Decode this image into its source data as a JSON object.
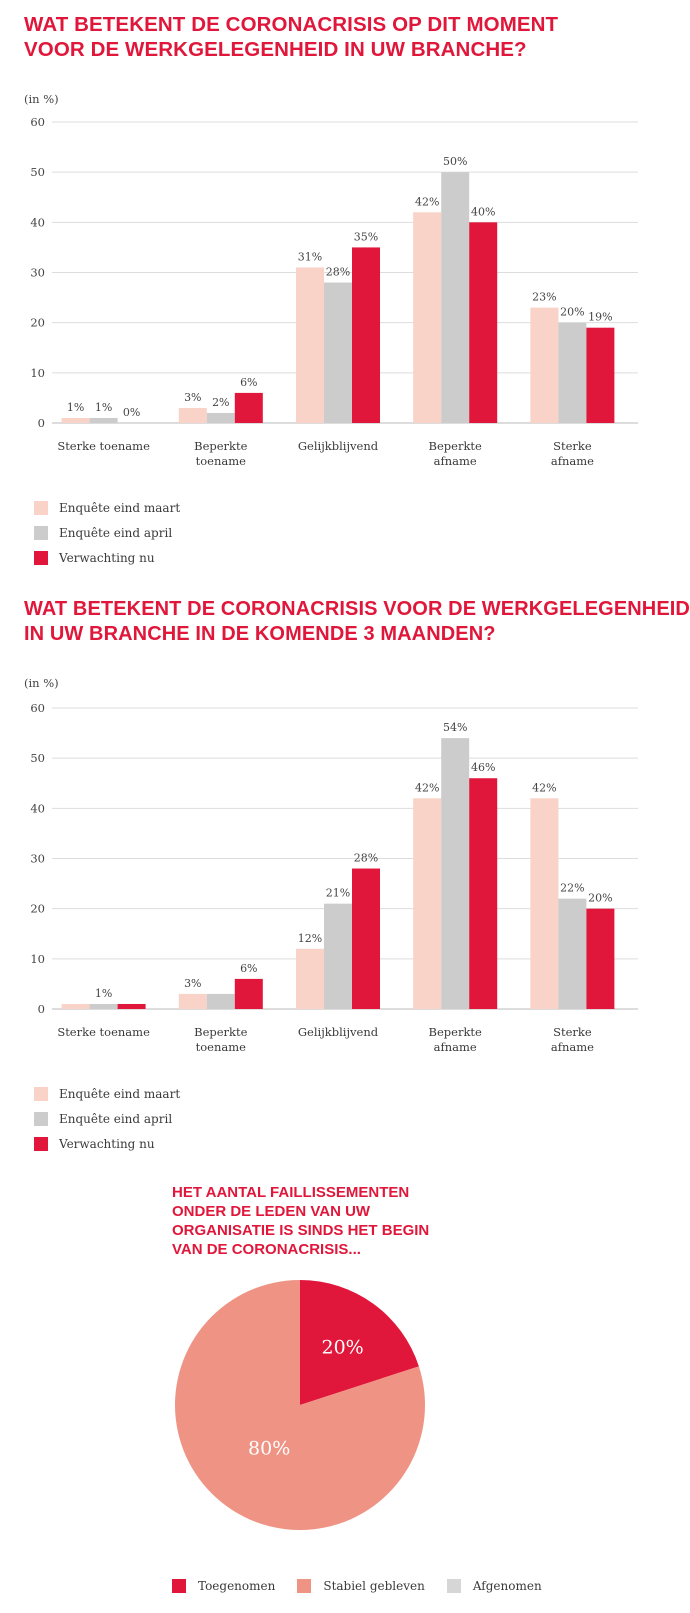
{
  "colors": {
    "maart": "#f9d2c8",
    "april": "#cccccc",
    "nu": "#e0173a",
    "grid": "#dddddd",
    "axis": "#bbbbbb",
    "pie_toegenomen": "#e0173a",
    "pie_stabiel": "#ef9484",
    "pie_afgenomen": "#d6d6d6"
  },
  "chart_data": [
    {
      "type": "bar",
      "title": "WAT BETEKENT DE CORONACRISIS OP DIT MOMENT\nVOOR DE WERKGELEGENHEID IN UW BRANCHE?",
      "ylabel": "(in %)",
      "ylim": [
        0,
        60
      ],
      "yticks": [
        "0",
        "10",
        "20",
        "30",
        "40",
        "50",
        "60"
      ],
      "grid": true,
      "legend_position": "bottom-left",
      "categories": [
        "Sterke toename",
        "Beperkte\ntoename",
        "Gelijkblijvend",
        "Beperkte\nafname",
        "Sterke\nafname"
      ],
      "series": [
        {
          "name": "Enquête eind maart",
          "values": [
            1,
            3,
            31,
            42,
            23
          ],
          "labels": [
            "1%",
            "3%",
            "31%",
            "42%",
            "23%"
          ]
        },
        {
          "name": "Enquête eind april",
          "values": [
            1,
            2,
            28,
            50,
            20
          ],
          "labels": [
            "1%",
            "2%",
            "28%",
            "50%",
            "20%"
          ]
        },
        {
          "name": "Verwachting nu",
          "values": [
            0,
            6,
            35,
            40,
            19
          ],
          "labels": [
            "0%",
            "6%",
            "35%",
            "40%",
            "19%"
          ]
        }
      ]
    },
    {
      "type": "bar",
      "title": "WAT BETEKENT DE CORONACRISIS VOOR DE WERKGELEGENHEID\nIN UW BRANCHE IN DE KOMENDE 3 MAANDEN?",
      "ylabel": "(in %)",
      "ylim": [
        0,
        60
      ],
      "yticks": [
        "0",
        "10",
        "20",
        "30",
        "40",
        "50",
        "60"
      ],
      "grid": true,
      "legend_position": "bottom-left",
      "categories": [
        "Sterke toename",
        "Beperkte\ntoename",
        "Gelijkblijvend",
        "Beperkte\nafname",
        "Sterke\nafname"
      ],
      "series": [
        {
          "name": "Enquête eind maart",
          "values": [
            1,
            3,
            12,
            42,
            42
          ],
          "labels": [
            "",
            "3%",
            "12%",
            "42%",
            "42%"
          ]
        },
        {
          "name": "Enquête eind april",
          "values": [
            1,
            3,
            21,
            54,
            22
          ],
          "labels": [
            "1%",
            "",
            "21%",
            "54%",
            "22%"
          ]
        },
        {
          "name": "Verwachting nu",
          "values": [
            1,
            6,
            28,
            46,
            20
          ],
          "labels": [
            "",
            "6%",
            "28%",
            "46%",
            "20%"
          ]
        }
      ]
    },
    {
      "type": "pie",
      "title": "HET AANTAL FAILLISSEMENTEN\nONDER DE LEDEN VAN UW\nORGANISATIE IS SINDS HET BEGIN\nVAN DE CORONACRISIS...",
      "legend_position": "bottom",
      "slices": [
        {
          "name": "Toegenomen",
          "value": 20,
          "label": "20%"
        },
        {
          "name": "Stabiel gebleven",
          "value": 80,
          "label": "80%"
        },
        {
          "name": "Afgenomen",
          "value": 0,
          "label": ""
        }
      ]
    }
  ]
}
